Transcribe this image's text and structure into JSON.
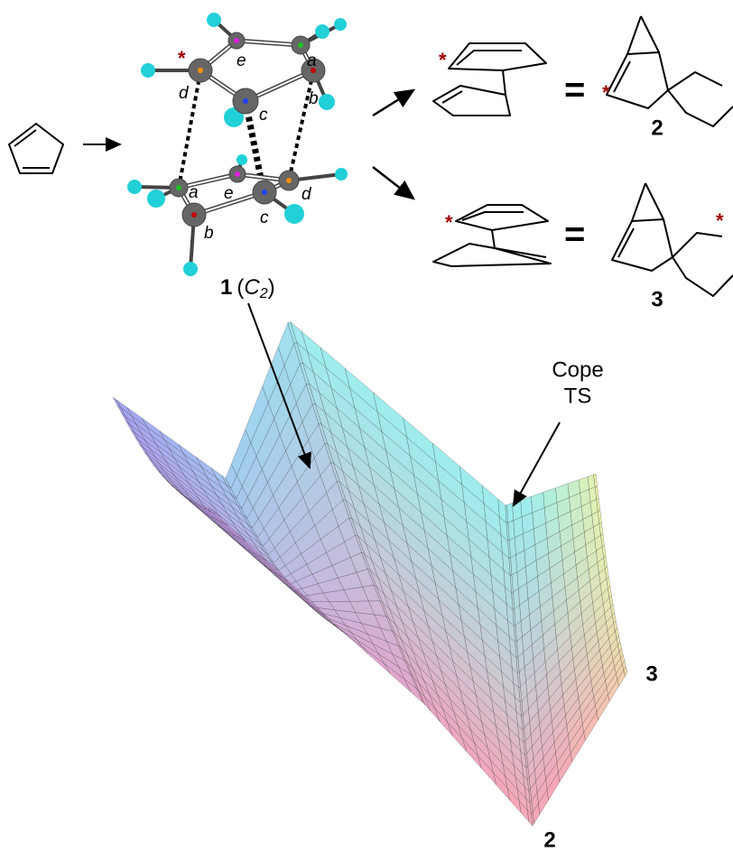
{
  "molecule": {
    "top_labels": [
      "e",
      "a",
      "d",
      "b",
      "c"
    ],
    "top_star": "*",
    "bottom_labels": [
      "a",
      "e",
      "c",
      "d",
      "b"
    ],
    "label": {
      "number": "1",
      "open": "(",
      "symbol": "C",
      "subscript": "2",
      "close": ")"
    }
  },
  "products": [
    {
      "left_star": "*",
      "equals": "=",
      "right_star": "*",
      "label": "2"
    },
    {
      "left_star": "*",
      "equals": "=",
      "right_star": "*",
      "label": "3"
    }
  ],
  "surface": {
    "annotation": [
      "Cope",
      "TS"
    ],
    "end_labels": [
      "3",
      "2"
    ]
  }
}
